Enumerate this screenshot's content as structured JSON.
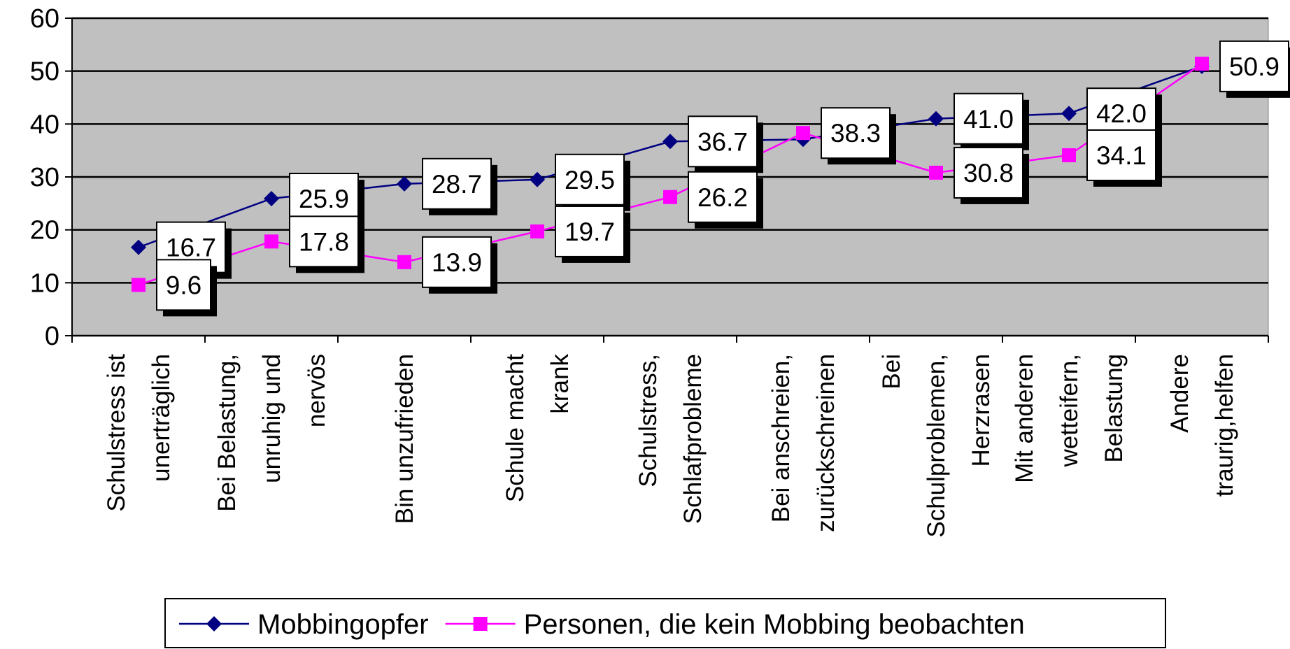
{
  "chart_data": {
    "type": "line",
    "categories": [
      "Schulstress ist\nunerträglich",
      "Bei Belastung,\nunruhig und\nnervös",
      "Bin unzufrieden",
      "Schule macht\nkrank",
      "Schulstress,\nSchlafprobleme",
      "Bei anschreien,\nzurückschreinen",
      "Bei\nSchulproblemen,\nHerzrasen",
      "Mit anderen\nwetteifern,\nBelastung",
      "Andere\ntraurig,helfen"
    ],
    "series": [
      {
        "name": "Mobbingopfer",
        "color": "#000080",
        "marker": "diamond",
        "values": [
          16.7,
          25.9,
          28.7,
          29.5,
          36.7,
          37.1,
          41.0,
          42.0,
          50.9
        ],
        "value_labels": [
          "16.7",
          "25.9",
          "28.7",
          "29.5",
          "36.7",
          null,
          "41.0",
          "42.0",
          "50.9"
        ]
      },
      {
        "name": "Personen, die kein Mobbing beobachten",
        "color": "#ff00ff",
        "marker": "square",
        "values": [
          9.6,
          17.8,
          13.9,
          19.7,
          26.2,
          38.3,
          30.8,
          34.1,
          51.4
        ],
        "value_labels": [
          "9.6",
          "17.8",
          "13.9",
          "19.7",
          "26.2",
          "38.3",
          "30.8",
          "34.1",
          null
        ]
      }
    ],
    "ylim": [
      0,
      60
    ],
    "yticks": [
      0,
      10,
      20,
      30,
      40,
      50,
      60
    ],
    "grid": true,
    "plot_background": "#c0c0c0",
    "legend": "bottom"
  }
}
